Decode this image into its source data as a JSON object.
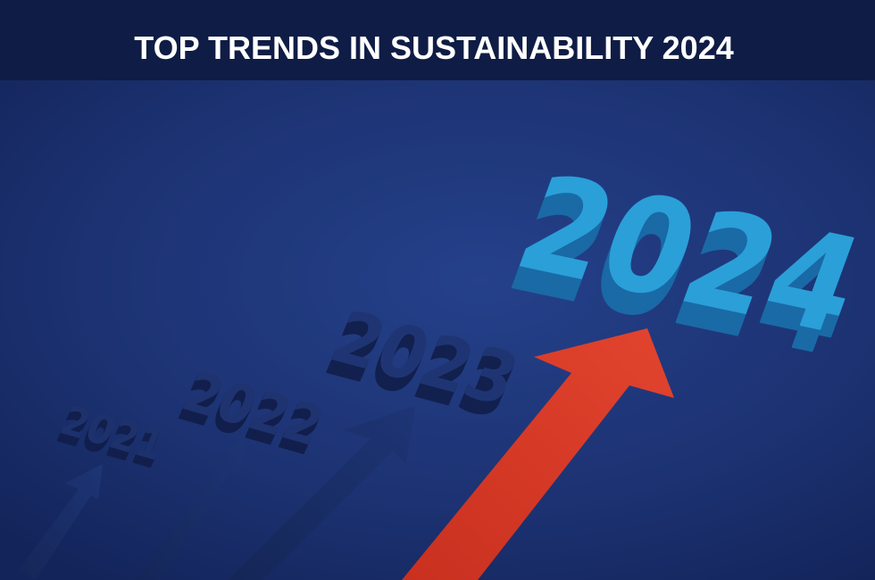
{
  "header": {
    "title": "TOP TRENDS IN SUSTAINABILITY 2024"
  },
  "image": {
    "years": [
      "2021",
      "2022",
      "2023",
      "2024"
    ]
  }
}
